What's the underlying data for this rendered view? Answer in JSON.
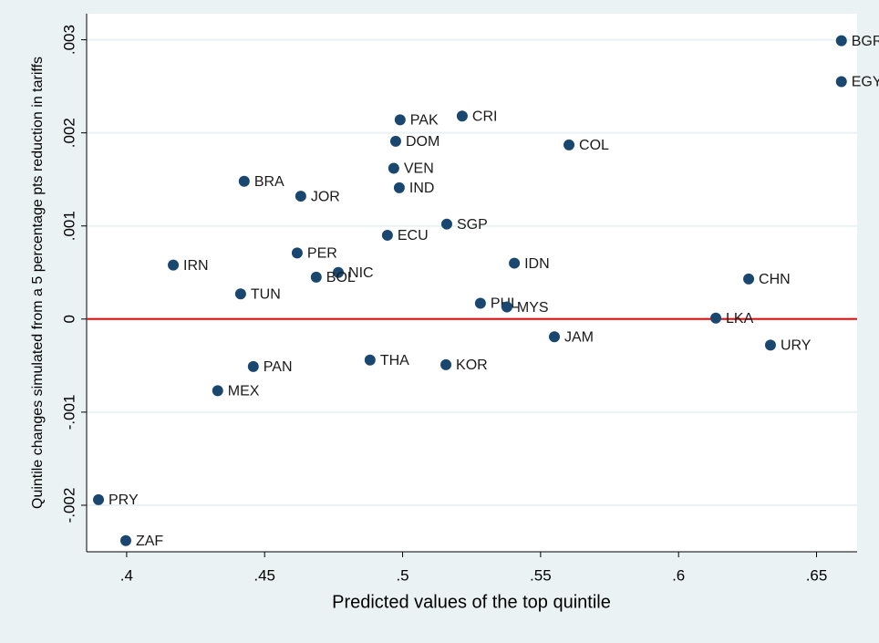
{
  "chart_data": {
    "type": "scatter",
    "xlabel": "Predicted values of the top quintile",
    "ylabel": "Quintile changes simulated from a 5 percentage pts reduction in tariffs",
    "labels": [
      "BGR",
      "EGY",
      "PAK",
      "CRI",
      "DOM",
      "COL",
      "VEN",
      "IND",
      "BRA",
      "JOR",
      "SGP",
      "ECU",
      "PER",
      "IRN",
      "IDN",
      "NIC",
      "BOL",
      "CHN",
      "TUN",
      "PHL",
      "MYS",
      "LKA",
      "JAM",
      "URY",
      "THA",
      "KOR",
      "PAN",
      "MEX",
      "PRY",
      "ZAF"
    ],
    "x": [
      0.659,
      0.659,
      0.4991,
      0.5216,
      0.4975,
      0.5603,
      0.4968,
      0.4988,
      0.4426,
      0.4631,
      0.516,
      0.4945,
      0.4618,
      0.4169,
      0.5405,
      0.4767,
      0.4687,
      0.6254,
      0.4413,
      0.5282,
      0.5378,
      0.6135,
      0.555,
      0.6333,
      0.4882,
      0.5157,
      0.4459,
      0.433,
      0.3898,
      0.3997
    ],
    "values": [
      0.00299,
      0.00255,
      0.00214,
      0.00218,
      0.00191,
      0.00187,
      0.00162,
      0.00141,
      0.00148,
      0.00132,
      0.00102,
      0.0009,
      0.00071,
      0.00058,
      0.0006,
      0.0005,
      0.00045,
      0.00043,
      0.00027,
      0.00017,
      0.00013,
      1e-05,
      -0.00019,
      -0.00028,
      -0.00044,
      -0.00049,
      -0.00051,
      -0.00077,
      -0.00194,
      -0.00238
    ],
    "color": "#1a476f",
    "xlim": [
      0.3855,
      0.6647
    ],
    "ylim": [
      -0.0025,
      0.00328
    ],
    "xticks": [
      {
        "value": 0.4,
        "label": ".4"
      },
      {
        "value": 0.45,
        "label": ".45"
      },
      {
        "value": 0.5,
        "label": ".5"
      },
      {
        "value": 0.55,
        "label": ".55"
      },
      {
        "value": 0.6,
        "label": ".6"
      },
      {
        "value": 0.65,
        "label": ".65"
      }
    ],
    "yticks": [
      {
        "value": -0.002,
        "label": "-.002"
      },
      {
        "value": -0.001,
        "label": "-.001"
      },
      0,
      {
        "value": 0.001,
        "label": ".001"
      },
      {
        "value": 0.002,
        "label": ".002"
      },
      {
        "value": 0.003,
        "label": ".003"
      }
    ],
    "grid": true,
    "reference_line": {
      "y": 0,
      "color": "#ff0000"
    }
  }
}
